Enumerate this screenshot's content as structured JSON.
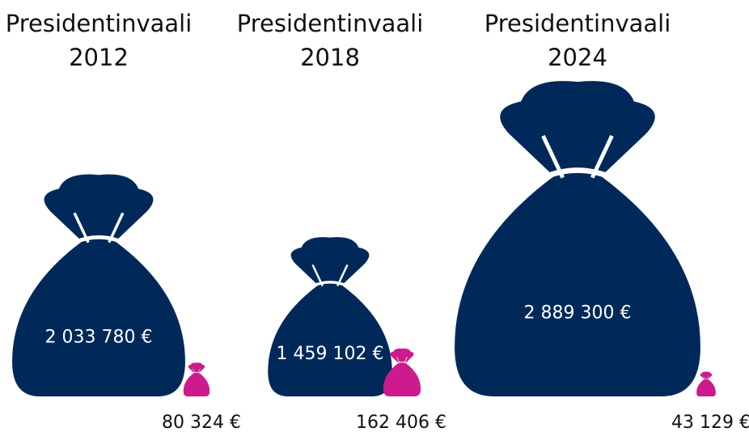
{
  "chart_data": {
    "type": "pictorial-bag",
    "categories": [
      "Presidentinvaali 2012",
      "Presidentinvaali 2018",
      "Presidentinvaali 2024"
    ],
    "series": [
      {
        "color": "#00295a",
        "values": [
          2033780,
          1459102,
          2889300
        ],
        "value_labels": [
          "2 033 780 €",
          "1 459 102 €",
          "2 889 300 €"
        ]
      },
      {
        "color": "#cd1a8d",
        "values": [
          80324,
          162406,
          43129
        ],
        "value_labels": [
          "80 324 €",
          "162 406 €",
          "43 129 €"
        ]
      }
    ]
  }
}
